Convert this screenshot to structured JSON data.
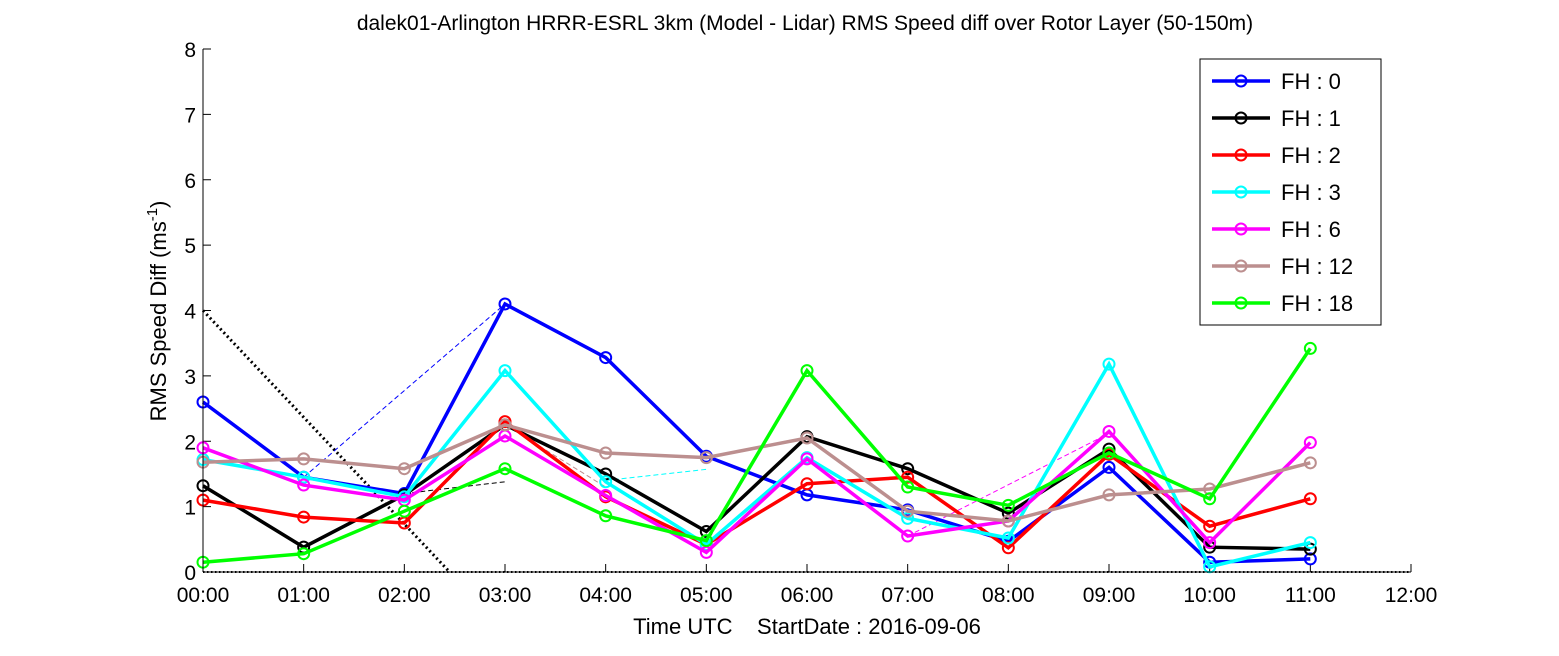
{
  "chart_data": {
    "type": "line",
    "title": "dalek01-Arlington HRRR-ESRL 3km (Model - Lidar) RMS Speed diff over Rotor Layer (50-150m)",
    "xlabel": "Time UTC    StartDate : 2016-09-06",
    "ylabel_main": "RMS Speed Diff (ms",
    "ylabel_sup": "-1",
    "ylabel_end": ")",
    "ylim": [
      0,
      8
    ],
    "xlim": [
      0,
      12
    ],
    "x_ticks": [
      "00:00",
      "01:00",
      "02:00",
      "03:00",
      "04:00",
      "05:00",
      "06:00",
      "07:00",
      "08:00",
      "09:00",
      "10:00",
      "11:00",
      "12:00"
    ],
    "y_ticks": [
      "0",
      "1",
      "2",
      "3",
      "4",
      "5",
      "6",
      "7",
      "8"
    ],
    "x": [
      0,
      1,
      2,
      3,
      4,
      5,
      6,
      7,
      8,
      9,
      10,
      11
    ],
    "legend_position": "top-right",
    "series": [
      {
        "name": "FH : 0",
        "color": "#0000ff",
        "values": [
          2.6,
          1.45,
          1.2,
          4.1,
          3.28,
          1.77,
          1.18,
          0.95,
          0.47,
          1.6,
          0.15,
          0.2
        ]
      },
      {
        "name": "FH : 1",
        "color": "#000000",
        "values": [
          1.32,
          0.38,
          1.18,
          2.25,
          1.5,
          0.62,
          2.07,
          1.58,
          0.9,
          1.88,
          0.38,
          0.35
        ]
      },
      {
        "name": "FH : 2",
        "color": "#ff0000",
        "values": [
          1.1,
          0.84,
          0.75,
          2.3,
          1.15,
          0.42,
          1.35,
          1.45,
          0.37,
          1.8,
          0.7,
          1.12
        ]
      },
      {
        "name": "FH : 3",
        "color": "#00ffff",
        "values": [
          1.72,
          1.45,
          1.15,
          3.08,
          1.38,
          0.42,
          1.75,
          0.82,
          0.52,
          3.18,
          0.08,
          0.45
        ]
      },
      {
        "name": "FH : 6",
        "color": "#ff00ff",
        "values": [
          1.9,
          1.33,
          1.1,
          2.08,
          1.17,
          0.3,
          1.73,
          0.55,
          0.78,
          2.15,
          0.45,
          1.98
        ]
      },
      {
        "name": "FH : 12",
        "color": "#bc8f8f",
        "values": [
          1.68,
          1.73,
          1.58,
          2.25,
          1.82,
          1.75,
          2.05,
          0.93,
          0.78,
          1.18,
          1.27,
          1.67
        ]
      },
      {
        "name": "FH : 18",
        "color": "#00ff00",
        "values": [
          0.15,
          0.28,
          0.93,
          1.58,
          0.86,
          0.48,
          3.08,
          1.3,
          1.02,
          1.82,
          1.12,
          3.42
        ]
      }
    ],
    "dashed_connectors": [
      {
        "color": "#0000ff",
        "x": [
          1,
          3
        ],
        "values": [
          1.45,
          4.1
        ]
      },
      {
        "color": "#000000",
        "x": [
          2,
          3
        ],
        "values": [
          1.2,
          1.38
        ]
      },
      {
        "color": "#00ffff",
        "x": [
          4,
          5
        ],
        "values": [
          1.4,
          1.57
        ]
      },
      {
        "color": "#ff00ff",
        "x": [
          7,
          9
        ],
        "values": [
          0.55,
          2.12
        ]
      },
      {
        "color": "#bc8f8f",
        "x": [
          3,
          4
        ],
        "values": [
          2.25,
          1.3
        ]
      }
    ],
    "dotted_line": {
      "color": "#000000",
      "x": [
        0,
        2.45
      ],
      "values": [
        4.0,
        0.0
      ]
    },
    "dotted_baseline": {
      "color": "#000000",
      "x": [
        0,
        12
      ],
      "values": [
        0,
        0
      ]
    }
  }
}
